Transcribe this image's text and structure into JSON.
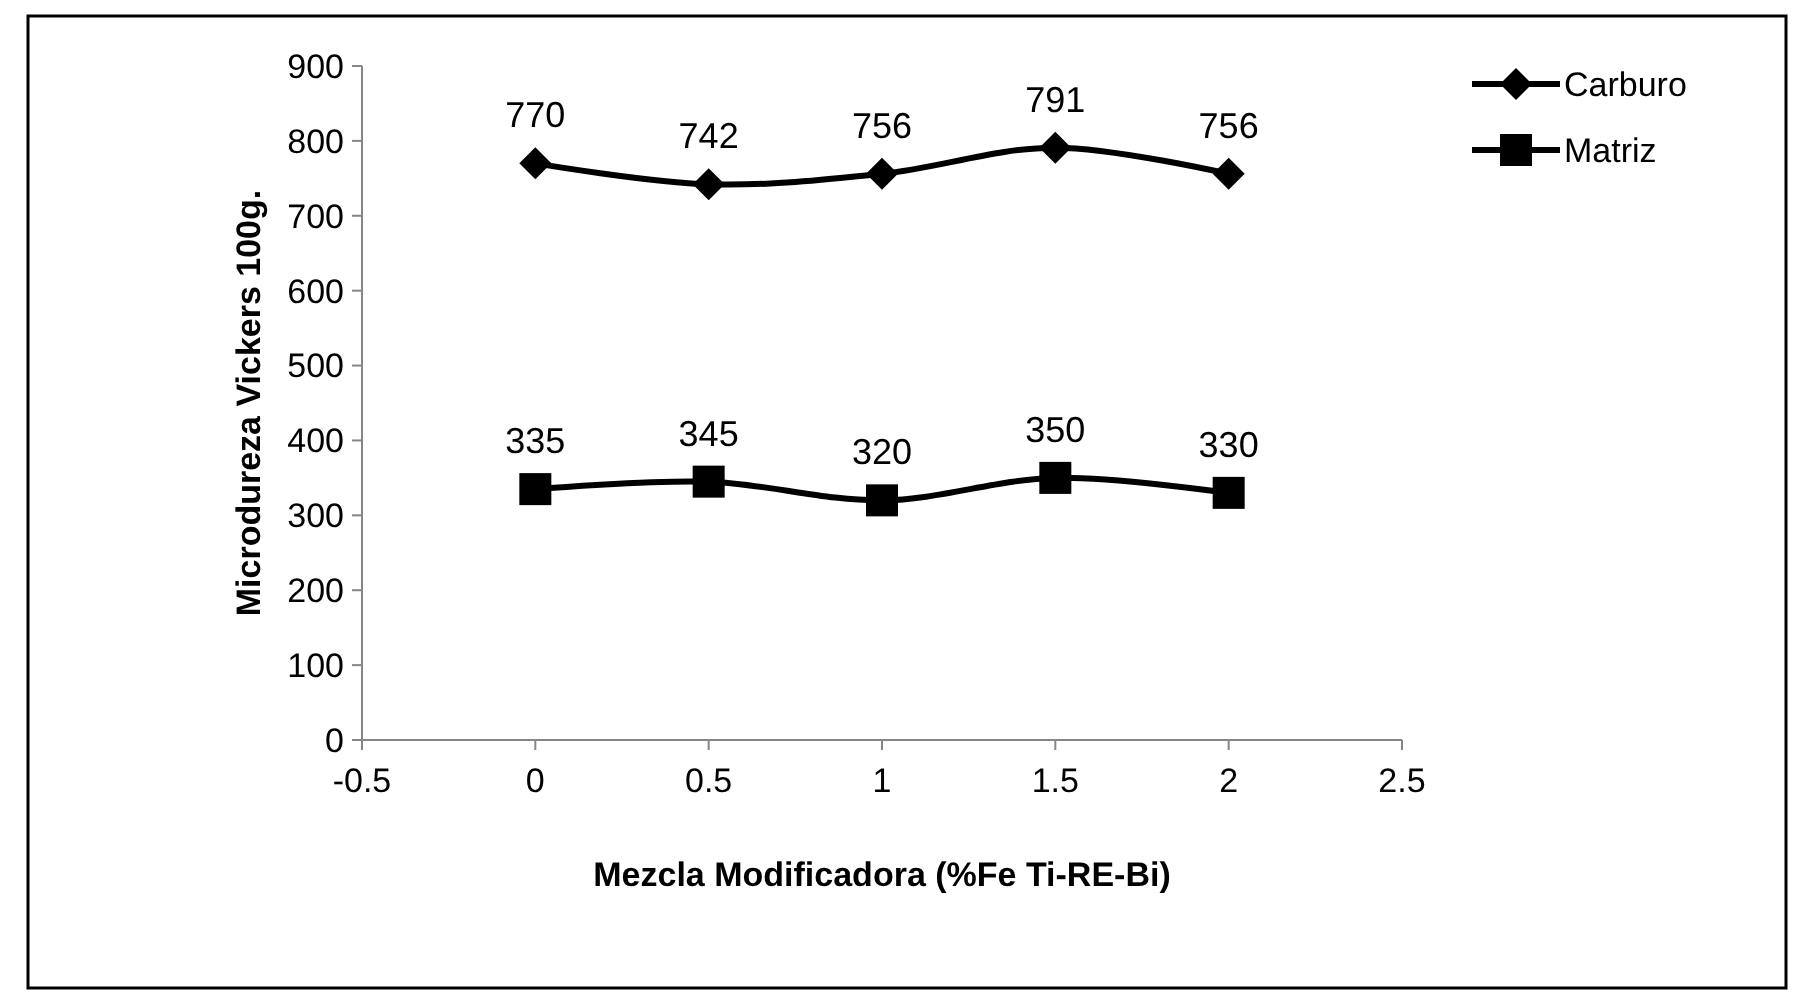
{
  "chart_data": {
    "type": "line",
    "xlabel": "Mezcla Modificadora (%Fe Ti-RE-Bi)",
    "ylabel": "Microdureza Vickers 100g.",
    "x": [
      0,
      0.5,
      1,
      1.5,
      2
    ],
    "series": [
      {
        "name": "Carburo",
        "color": "#000000",
        "marker": "diamond",
        "values": [
          770,
          742,
          756,
          791,
          756
        ]
      },
      {
        "name": "Matriz",
        "color": "#000000",
        "marker": "square",
        "values": [
          335,
          345,
          320,
          350,
          330
        ]
      }
    ],
    "xlim": [
      -0.5,
      2.5
    ],
    "xticks": [
      -0.5,
      0,
      0.5,
      1,
      1.5,
      2,
      2.5
    ],
    "ylim": [
      0,
      900
    ],
    "yticks": [
      0,
      100,
      200,
      300,
      400,
      500,
      600,
      700,
      800,
      900
    ],
    "grid": false,
    "legend": "right",
    "data_labels": true,
    "line_style": "solid"
  }
}
